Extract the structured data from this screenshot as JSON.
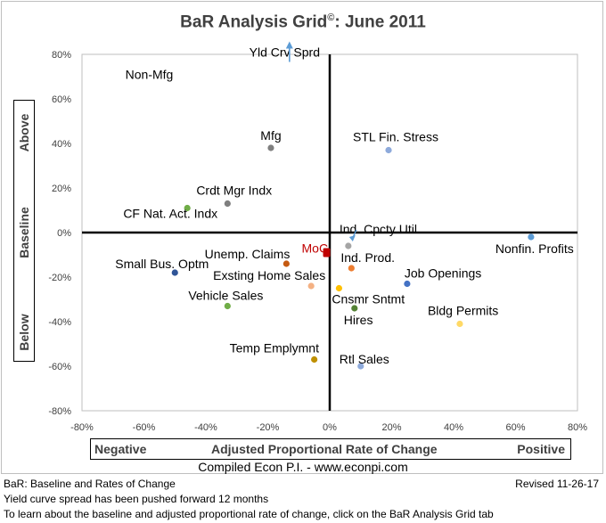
{
  "title": "BaR Analysis Grid",
  "title_symbol": "©",
  "title_suffix": ": June 2011",
  "y_axis": {
    "above": "Above",
    "baseline": "Baseline",
    "below": "Below"
  },
  "x_axis": {
    "negative": "Negative",
    "center": "Adjusted Proportional Rate of Change",
    "positive": "Positive"
  },
  "credit": "Compiled Econ P.I. - www.econpi.com",
  "footer": {
    "left": "BaR: Baseline and Rates of Change",
    "right": "Revised 11-26-17",
    "note1": "Yield curve spread has been pushed forward 12 months",
    "note2": "To learn about the baseline and  adjusted proportional rate of change, click on the BaR Analysis Grid tab"
  },
  "chart_data": {
    "type": "scatter",
    "xlim": [
      -0.8,
      0.8
    ],
    "ylim": [
      -0.8,
      0.8
    ],
    "x_ticks": [
      "-80%",
      "-60%",
      "-40%",
      "-20%",
      "0%",
      "20%",
      "40%",
      "60%",
      "80%"
    ],
    "y_ticks": [
      "80%",
      "60%",
      "40%",
      "20%",
      "0%",
      "-20%",
      "-40%",
      "-60%",
      "-80%"
    ],
    "grid": false,
    "annotations": [
      {
        "text": "Non-Mfg",
        "x": -0.66,
        "y": 0.69
      },
      {
        "text": "Yld Crv Sprd",
        "x": -0.26,
        "y": 0.79,
        "arrow": "up",
        "arrow_x": -0.13,
        "arrow_y": 0.83
      }
    ],
    "points": [
      {
        "label": "Mfg",
        "x": -0.19,
        "y": 0.38,
        "color": "#7f7f7f"
      },
      {
        "label": "STL Fin. Stress",
        "x": 0.19,
        "y": 0.37,
        "color": "#8eaadb"
      },
      {
        "label": "Crdt Mgr Indx",
        "x": -0.33,
        "y": 0.13,
        "color": "#7f7f7f"
      },
      {
        "label": "CF Nat. Act. Indx",
        "x": -0.46,
        "y": 0.11,
        "color": "#70ad47"
      },
      {
        "label": "Ind. Cpcty Util.",
        "x": 0.06,
        "y": -0.06,
        "color": "#a5a5a5",
        "arrow": true
      },
      {
        "label": "Nonfin. Profits",
        "x": 0.65,
        "y": -0.02,
        "color": "#5b9bd5"
      },
      {
        "label": "Unemp. Claims",
        "x": -0.14,
        "y": -0.14,
        "color": "#c55a11"
      },
      {
        "label": "Small Bus. Optm",
        "x": -0.5,
        "y": -0.18,
        "color": "#2f5597"
      },
      {
        "label": "Ind. Prod.",
        "x": 0.07,
        "y": -0.16,
        "color": "#ed7d31"
      },
      {
        "label": "Exsting Home Sales",
        "x": -0.06,
        "y": -0.24,
        "color": "#f4b183"
      },
      {
        "label": "Job Openings",
        "x": 0.25,
        "y": -0.23,
        "color": "#4472c4"
      },
      {
        "label": "Cnsmr Sntmt",
        "x": 0.03,
        "y": -0.25,
        "color": "#ffc000"
      },
      {
        "label": "Vehicle Sales",
        "x": -0.33,
        "y": -0.33,
        "color": "#70ad47"
      },
      {
        "label": "Hires",
        "x": 0.08,
        "y": -0.34,
        "color": "#548235"
      },
      {
        "label": "Bldg Permits",
        "x": 0.42,
        "y": -0.41,
        "color": "#ffd966"
      },
      {
        "label": "Temp Emplymnt",
        "x": -0.05,
        "y": -0.57,
        "color": "#bf9000"
      },
      {
        "label": "Rtl Sales",
        "x": 0.1,
        "y": -0.6,
        "color": "#8eaadb"
      },
      {
        "label": "MoC",
        "x": -0.01,
        "y": -0.09,
        "color": "#c00000",
        "shape": "square"
      }
    ]
  }
}
